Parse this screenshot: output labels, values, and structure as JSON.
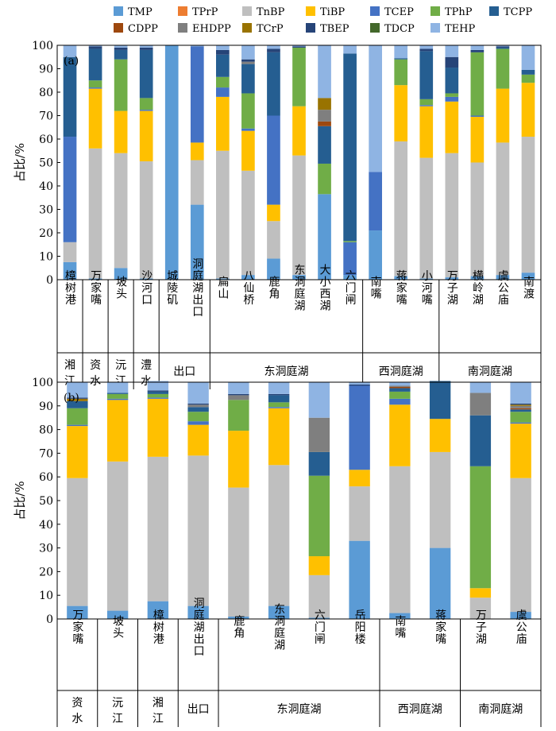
{
  "legend": [
    {
      "name": "TMP",
      "color": "#5B9BD5"
    },
    {
      "name": "TPrP",
      "color": "#ED7D31"
    },
    {
      "name": "TnBP",
      "color": "#BFBFBF"
    },
    {
      "name": "TiBP",
      "color": "#FFC000"
    },
    {
      "name": "TCEP",
      "color": "#4472C4"
    },
    {
      "name": "TPhP",
      "color": "#70AD47"
    },
    {
      "name": "TCPP",
      "color": "#255E91"
    },
    {
      "name": "CDPP",
      "color": "#9E480E"
    },
    {
      "name": "EHDPP",
      "color": "#7F7F7F"
    },
    {
      "name": "TCrP",
      "color": "#997300"
    },
    {
      "name": "TBEP",
      "color": "#264478"
    },
    {
      "name": "TDCP",
      "color": "#43682B"
    },
    {
      "name": "TEHP",
      "color": "#8FB4E3"
    }
  ],
  "chart_data": [
    {
      "type": "bar",
      "stacked": true,
      "panel_label": "(a)",
      "ylabel": "占比/%",
      "ylim": [
        0,
        100
      ],
      "yticks": [
        0,
        10,
        20,
        30,
        40,
        50,
        60,
        70,
        80,
        90,
        100
      ],
      "grid": false,
      "legend_placement": "top",
      "categories": [
        "樟树港",
        "万家嘴",
        "坡头",
        "沙河口",
        "城陵矶",
        "洞庭湖出口",
        "扁山",
        "八仙桥",
        "鹿角",
        "东洞庭湖",
        "大小西湖",
        "六门闸",
        "南嘴",
        "蒋家嘴",
        "小河嘴",
        "万子湖",
        "横岭湖",
        "虞公庙",
        "南渡"
      ],
      "groups": [
        {
          "label": "湘\n江",
          "span": [
            0,
            0
          ]
        },
        {
          "label": "资\n水",
          "span": [
            1,
            1
          ]
        },
        {
          "label": "沅\n江",
          "span": [
            2,
            2
          ]
        },
        {
          "label": "澧\n水",
          "span": [
            3,
            3
          ]
        },
        {
          "label": "出口",
          "span": [
            4,
            5
          ]
        },
        {
          "label": "东洞庭湖",
          "span": [
            6,
            11
          ]
        },
        {
          "label": "西洞庭湖",
          "span": [
            12,
            14
          ]
        },
        {
          "label": "南洞庭湖",
          "span": [
            15,
            18
          ]
        }
      ],
      "series": [
        {
          "name": "TMP",
          "values": [
            7.5,
            0.5,
            5,
            0.5,
            100,
            32,
            0.5,
            2,
            9,
            2,
            36.5,
            2,
            21,
            1.5,
            0.5,
            1,
            1.5,
            2,
            3
          ]
        },
        {
          "name": "TPrP",
          "values": [
            0,
            0,
            0,
            0,
            0,
            0,
            0,
            0,
            0,
            0,
            0,
            0,
            0,
            0,
            0,
            0,
            0,
            0,
            0
          ]
        },
        {
          "name": "TnBP",
          "values": [
            8.5,
            55.5,
            49,
            50,
            0,
            19,
            54.5,
            44.5,
            16,
            51,
            0,
            0,
            0,
            57.5,
            51.5,
            53,
            48.5,
            56.5,
            58
          ]
        },
        {
          "name": "TiBP",
          "values": [
            0,
            25.5,
            18,
            21.5,
            0,
            7.5,
            23,
            17,
            7,
            21,
            0,
            0,
            0,
            24,
            22,
            22,
            19.5,
            23,
            23
          ]
        },
        {
          "name": "TCEP",
          "values": [
            45,
            0.5,
            0,
            0.5,
            0,
            41,
            4,
            1,
            38,
            0,
            0,
            14,
            25,
            0,
            0.5,
            2,
            0.5,
            0,
            0
          ]
        },
        {
          "name": "TPhP",
          "values": [
            0,
            3,
            22,
            5,
            0,
            0,
            4.5,
            15,
            0,
            25,
            13,
            0.5,
            0,
            11,
            2.5,
            1.5,
            27,
            17,
            3.5
          ]
        },
        {
          "name": "TCPP",
          "values": [
            34,
            13.5,
            4,
            20.5,
            0,
            0,
            9.5,
            12.5,
            27,
            0,
            16,
            80,
            0,
            0.5,
            20.5,
            11,
            0,
            0.5,
            2
          ]
        },
        {
          "name": "CDPP",
          "values": [
            0,
            0,
            0,
            0,
            0,
            0,
            0,
            0,
            0,
            0,
            2,
            0,
            0,
            0,
            0,
            0,
            0,
            0,
            0
          ]
        },
        {
          "name": "EHDPP",
          "values": [
            0,
            0,
            0,
            0,
            0,
            0,
            0,
            1,
            0,
            0,
            5,
            0,
            0,
            0,
            0,
            0,
            0,
            0,
            0
          ]
        },
        {
          "name": "TCrP",
          "values": [
            0,
            0,
            0,
            0,
            0,
            0,
            0,
            0,
            0,
            0,
            5,
            0,
            0,
            0,
            0,
            0,
            0,
            0,
            0
          ]
        },
        {
          "name": "TBEP",
          "values": [
            0,
            1,
            1,
            1,
            0,
            0,
            2,
            1,
            1.5,
            0.5,
            0,
            0,
            0,
            0,
            1,
            4.5,
            1,
            0.5,
            0
          ]
        },
        {
          "name": "TDCP",
          "values": [
            0,
            0,
            0,
            0,
            0,
            0,
            0,
            0,
            0,
            0,
            0,
            0,
            0,
            0,
            0,
            0,
            0,
            0,
            0
          ]
        },
        {
          "name": "TEHP",
          "values": [
            5,
            0.5,
            1,
            1,
            0,
            0.5,
            2,
            6,
            1.5,
            0.5,
            22.5,
            3.5,
            54,
            5.5,
            1.5,
            5,
            2,
            0.5,
            10.5
          ]
        }
      ]
    },
    {
      "type": "bar",
      "stacked": true,
      "panel_label": "(b)",
      "ylabel": "占比/%",
      "ylim": [
        0,
        100
      ],
      "yticks": [
        0,
        10,
        20,
        30,
        40,
        50,
        60,
        70,
        80,
        90,
        100
      ],
      "grid": false,
      "categories": [
        "万家嘴",
        "坡头",
        "樟树港",
        "洞庭湖出口",
        "鹿角",
        "东洞庭湖",
        "六门闸",
        "岳阳楼",
        "南嘴",
        "蒋家嘴",
        "万子湖",
        "虞公庙"
      ],
      "groups": [
        {
          "label": "资\n水",
          "span": [
            0,
            0
          ]
        },
        {
          "label": "沅\n江",
          "span": [
            1,
            1
          ]
        },
        {
          "label": "湘\n江",
          "span": [
            2,
            2
          ]
        },
        {
          "label": "出口",
          "span": [
            3,
            3
          ]
        },
        {
          "label": "东洞庭湖",
          "span": [
            4,
            7
          ]
        },
        {
          "label": "西洞庭湖",
          "span": [
            8,
            9
          ]
        },
        {
          "label": "南洞庭湖",
          "span": [
            10,
            11
          ]
        }
      ],
      "series": [
        {
          "name": "TMP",
          "values": [
            5.5,
            3.5,
            7.5,
            5.5,
            1,
            5.5,
            0.5,
            33,
            2.5,
            30,
            0,
            3
          ]
        },
        {
          "name": "TPrP",
          "values": [
            0,
            0,
            0,
            0,
            0,
            0,
            0,
            0,
            0,
            0,
            0,
            0
          ]
        },
        {
          "name": "TnBP",
          "values": [
            54,
            63,
            61,
            63.5,
            54.5,
            59.5,
            18,
            23,
            62,
            40.5,
            9,
            56.5
          ]
        },
        {
          "name": "TiBP",
          "values": [
            22,
            26,
            24.5,
            13,
            24,
            24,
            8,
            7,
            26,
            14,
            4,
            23
          ]
        },
        {
          "name": "TCEP",
          "values": [
            0.5,
            0.5,
            0.5,
            1.5,
            0,
            0.5,
            0,
            35.5,
            2.5,
            0,
            0,
            0.5
          ]
        },
        {
          "name": "TPhP",
          "values": [
            7,
            2,
            1.5,
            4,
            13,
            2,
            34,
            0,
            3,
            0,
            51.5,
            4.5
          ]
        },
        {
          "name": "TCPP",
          "values": [
            3,
            0.5,
            1,
            2,
            0,
            3,
            10,
            0,
            1.5,
            16,
            21.5,
            1
          ]
        },
        {
          "name": "CDPP",
          "values": [
            0,
            0,
            0,
            0,
            0,
            0,
            0,
            0,
            0.5,
            0,
            0,
            0.5
          ]
        },
        {
          "name": "EHDPP",
          "values": [
            0,
            0,
            0,
            1,
            2,
            0,
            14.5,
            0,
            0.5,
            0,
            9.5,
            1
          ]
        },
        {
          "name": "TCrP",
          "values": [
            1,
            0,
            0,
            0,
            0,
            0,
            0,
            0,
            0,
            0,
            0,
            0.5
          ]
        },
        {
          "name": "TBEP",
          "values": [
            0.5,
            0,
            0.5,
            0.5,
            0.5,
            0.5,
            0,
            0.5,
            0,
            0,
            0,
            0.5
          ]
        },
        {
          "name": "TDCP",
          "values": [
            0,
            0,
            0,
            0,
            0,
            0,
            0,
            0,
            0,
            0,
            0,
            0
          ]
        },
        {
          "name": "TEHP",
          "values": [
            6.5,
            4.5,
            4,
            9,
            5,
            5,
            15,
            1,
            1.5,
            0,
            4.5,
            9
          ]
        }
      ]
    }
  ]
}
